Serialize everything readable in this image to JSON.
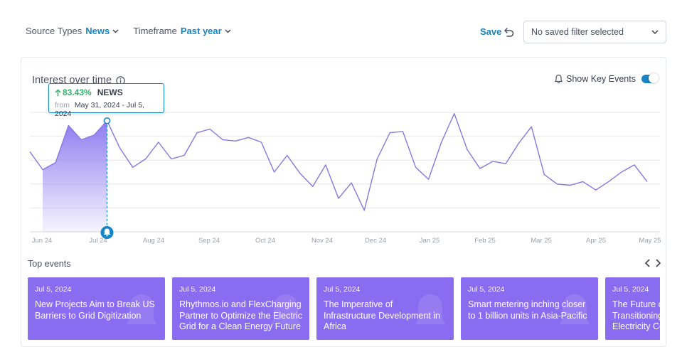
{
  "filters": {
    "source_types": {
      "label": "Source Types",
      "value": "News"
    },
    "timeframe": {
      "label": "Timeframe",
      "value": "Past year"
    }
  },
  "save_label": "Save",
  "saved_filter": {
    "placeholder": "No saved filter selected"
  },
  "chart": {
    "title": "Interest over time",
    "key_events_label": "Show Key Events",
    "key_events_enabled": true
  },
  "tooltip": {
    "change": "83.43%",
    "source": "NEWS",
    "from_label": "from",
    "range": "May 31, 2024 - Jul 5, 2024"
  },
  "chart_data": {
    "type": "area",
    "x_ticks": [
      "Jun 24",
      "Jul 24",
      "Aug 24",
      "Sep 24",
      "Oct 24",
      "Nov 24",
      "Dec 24",
      "Jan 25",
      "Feb 25",
      "Mar 25",
      "Apr 25",
      "May 25"
    ],
    "ylim": [
      0,
      100
    ],
    "grid": true,
    "values": [
      67,
      52,
      58,
      89,
      77,
      81,
      93,
      70,
      54,
      61,
      75,
      61,
      64,
      83,
      86,
      77,
      76,
      79,
      75,
      50,
      64,
      49,
      38,
      56,
      28,
      41,
      18,
      61,
      83,
      84,
      54,
      44,
      75,
      99,
      69,
      53,
      59,
      57,
      74,
      88,
      48,
      40,
      39,
      42,
      35,
      42,
      50,
      56,
      42
    ],
    "highlighted_index": 6,
    "key_event_x": "Jul 5, 2024"
  },
  "top_events": {
    "title": "Top events",
    "items": [
      {
        "date": "Jul 5, 2024",
        "lines": [
          "New Projects Aim to Break US",
          "Barriers to Grid Digitization"
        ]
      },
      {
        "date": "Jul 5, 2024",
        "lines": [
          "Rhythmos.io and FlexCharging",
          "Partner to Optimize the Electric",
          "Grid for a Clean Energy Future"
        ]
      },
      {
        "date": "Jul 5, 2024",
        "lines": [
          "The Imperative of",
          "Infrastructure Development in",
          "Africa"
        ]
      },
      {
        "date": "Jul 5, 2024",
        "lines": [
          "Smart metering inching closer",
          "to 1 billion units in Asia-Pacific"
        ]
      },
      {
        "date": "Jul 5, 2024",
        "lines": [
          "The Future of Energy:",
          "Transitioning to a Clean",
          "Electricity Common Market"
        ]
      }
    ]
  },
  "colors": {
    "accent": "#1784c4",
    "line": "#8a76e0",
    "area_top": "#8f7cf0",
    "card": "#8a6cf0",
    "positive": "#2db56a"
  }
}
